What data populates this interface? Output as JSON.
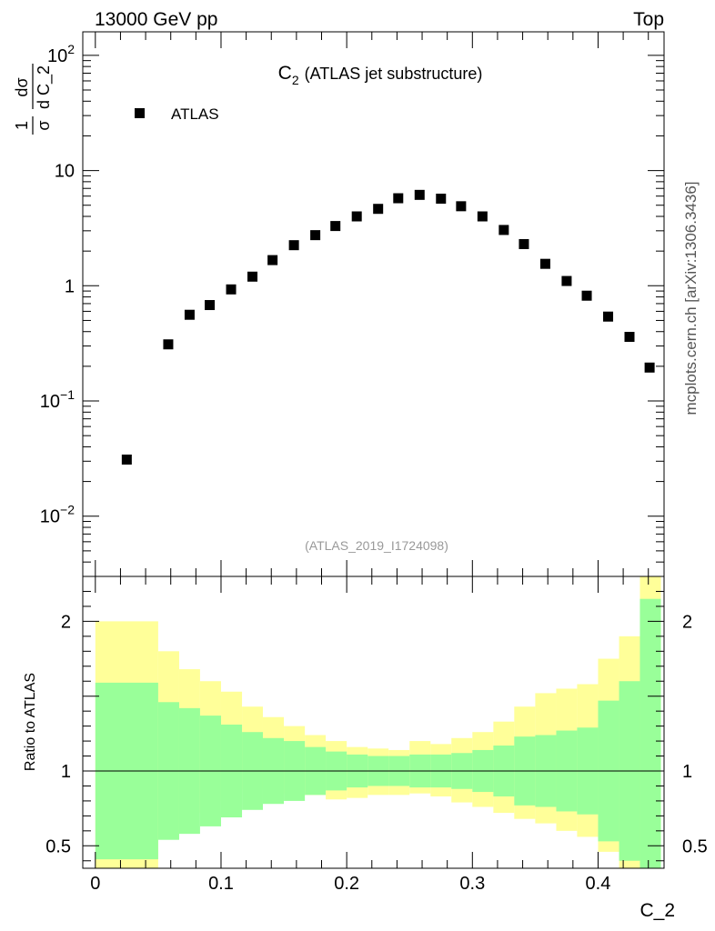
{
  "header": {
    "left": "13000 GeV pp",
    "right": "Top"
  },
  "side_label": "mcplots.cern.ch [arXiv:1306.3436]",
  "chart_data": [
    {
      "type": "scatter",
      "title_main": "C",
      "title_sub": "2",
      "title_rest": "(ATLAS jet substructure)",
      "analysis_id": "(ATLAS_2019_I1724098)",
      "ylabel": "1/σ dσ/d C_2",
      "ylabel_parts": {
        "frac1_num": "1",
        "frac1_den": "σ",
        "frac2_num": "dσ",
        "frac2_den": "d C_2"
      },
      "yscale": "log",
      "ylim": [
        0.003,
        160
      ],
      "xlim": [
        -0.01,
        0.4525
      ],
      "ytick_labels": [
        {
          "value": 0.01,
          "base": "10",
          "exp": "−2"
        },
        {
          "value": 0.1,
          "base": "10",
          "exp": "−1"
        },
        {
          "value": 1,
          "base": "1",
          "exp": ""
        },
        {
          "value": 10,
          "base": "10",
          "exp": ""
        },
        {
          "value": 100,
          "base": "10",
          "exp": "2"
        }
      ],
      "legend": {
        "position": "top-left",
        "entries": [
          {
            "label": "ATLAS",
            "marker": "square",
            "color": "#000000"
          }
        ]
      },
      "series": [
        {
          "name": "ATLAS",
          "x": [
            0.025,
            0.058,
            0.075,
            0.091,
            0.108,
            0.125,
            0.141,
            0.158,
            0.175,
            0.191,
            0.208,
            0.225,
            0.241,
            0.258,
            0.275,
            0.291,
            0.308,
            0.325,
            0.341,
            0.358,
            0.375,
            0.391,
            0.408,
            0.425,
            0.441
          ],
          "y": [
            0.031,
            0.31,
            0.56,
            0.68,
            0.93,
            1.2,
            1.67,
            2.25,
            2.75,
            3.3,
            4.0,
            4.65,
            5.75,
            6.15,
            5.7,
            4.9,
            4.0,
            3.05,
            2.3,
            1.55,
            1.1,
            0.82,
            0.54,
            0.36,
            0.195
          ]
        }
      ]
    },
    {
      "type": "area",
      "ylabel": "Ratio to ATLAS",
      "xlabel": "C_2",
      "ylim": [
        0.35,
        2.3
      ],
      "xlim": [
        -0.01,
        0.4525
      ],
      "xtick_labels": [
        {
          "value": 0,
          "label": "0"
        },
        {
          "value": 0.1,
          "label": "0.1"
        },
        {
          "value": 0.2,
          "label": "0.2"
        },
        {
          "value": 0.3,
          "label": "0.3"
        },
        {
          "value": 0.4,
          "label": "0.4"
        }
      ],
      "ytick_labels": [
        {
          "value": 0.5,
          "label": "0.5"
        },
        {
          "value": 1,
          "label": "1"
        },
        {
          "value": 2,
          "label": "2"
        }
      ],
      "reference_line": 1,
      "bin_edges": [
        0.0,
        0.05,
        0.0667,
        0.0833,
        0.1,
        0.1167,
        0.1333,
        0.15,
        0.1667,
        0.1833,
        0.2,
        0.2167,
        0.2333,
        0.25,
        0.2667,
        0.2833,
        0.3,
        0.3167,
        0.3333,
        0.35,
        0.3667,
        0.3833,
        0.4,
        0.4167,
        0.4333,
        0.45
      ],
      "bands": [
        {
          "name": "total",
          "color": "#ffff99",
          "upper": [
            2.0,
            1.8,
            1.68,
            1.6,
            1.53,
            1.43,
            1.36,
            1.3,
            1.24,
            1.2,
            1.16,
            1.15,
            1.14,
            1.2,
            1.18,
            1.22,
            1.26,
            1.33,
            1.43,
            1.52,
            1.55,
            1.58,
            1.75,
            1.9,
            2.4
          ],
          "lower": [
            0.3,
            0.58,
            0.72,
            0.8,
            0.86,
            0.88,
            0.9,
            0.85,
            0.84,
            0.81,
            0.82,
            0.84,
            0.84,
            0.85,
            0.83,
            0.79,
            0.76,
            0.72,
            0.68,
            0.65,
            0.6,
            0.56,
            0.46,
            0.3,
            0.4
          ]
        },
        {
          "name": "stat",
          "color": "#99ff99",
          "upper": [
            1.59,
            1.46,
            1.42,
            1.37,
            1.31,
            1.26,
            1.22,
            1.2,
            1.16,
            1.13,
            1.11,
            1.1,
            1.1,
            1.11,
            1.11,
            1.12,
            1.14,
            1.17,
            1.23,
            1.24,
            1.27,
            1.29,
            1.47,
            1.6,
            2.15
          ]
        }
      ]
    }
  ]
}
